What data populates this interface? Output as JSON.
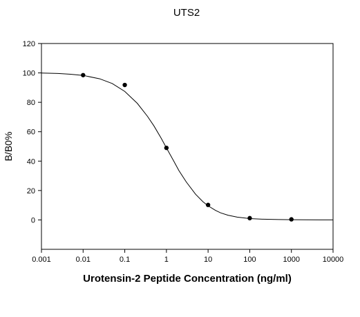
{
  "chart_data": {
    "type": "scatter",
    "title": "UTS2",
    "xlabel": "Urotensin-2 Peptide Concentration (ng/ml)",
    "ylabel": "B/B0%",
    "x_scale": "log",
    "xlim": [
      0.001,
      10000
    ],
    "ylim": [
      -20,
      120
    ],
    "x_ticks": [
      0.001,
      0.01,
      0.1,
      1,
      10,
      100,
      1000,
      10000
    ],
    "x_tick_labels": [
      "0.001",
      "0.01",
      "0.1",
      "1",
      "10",
      "100",
      "1000",
      "10000"
    ],
    "y_ticks": [
      0,
      20,
      40,
      60,
      80,
      100,
      120
    ],
    "y_tick_labels": [
      "0",
      "20",
      "40",
      "60",
      "80",
      "100",
      "120"
    ],
    "grid": false,
    "series": [
      {
        "type": "scatter",
        "x": [
          0.01,
          0.1,
          1,
          10,
          100,
          1000
        ],
        "y": [
          98.5,
          91.8,
          49.0,
          10.2,
          1.2,
          0.4
        ]
      },
      {
        "type": "line",
        "x": [
          0.001,
          0.0025,
          0.005,
          0.01,
          0.025,
          0.05,
          0.1,
          0.2,
          0.35,
          0.5,
          0.75,
          1,
          1.5,
          2,
          3,
          5,
          7.5,
          10,
          15,
          20,
          30,
          50,
          100,
          200,
          500,
          1000,
          5000,
          10000
        ],
        "y": [
          99.9,
          99.6,
          99.1,
          98.3,
          96.0,
          92.8,
          87.4,
          79.3,
          70.5,
          64.0,
          55.5,
          49.0,
          40.0,
          33.5,
          25.8,
          17.5,
          12.4,
          9.6,
          6.5,
          4.8,
          3.2,
          1.9,
          0.9,
          0.5,
          0.25,
          0.15,
          0.05,
          0.02
        ]
      }
    ]
  }
}
